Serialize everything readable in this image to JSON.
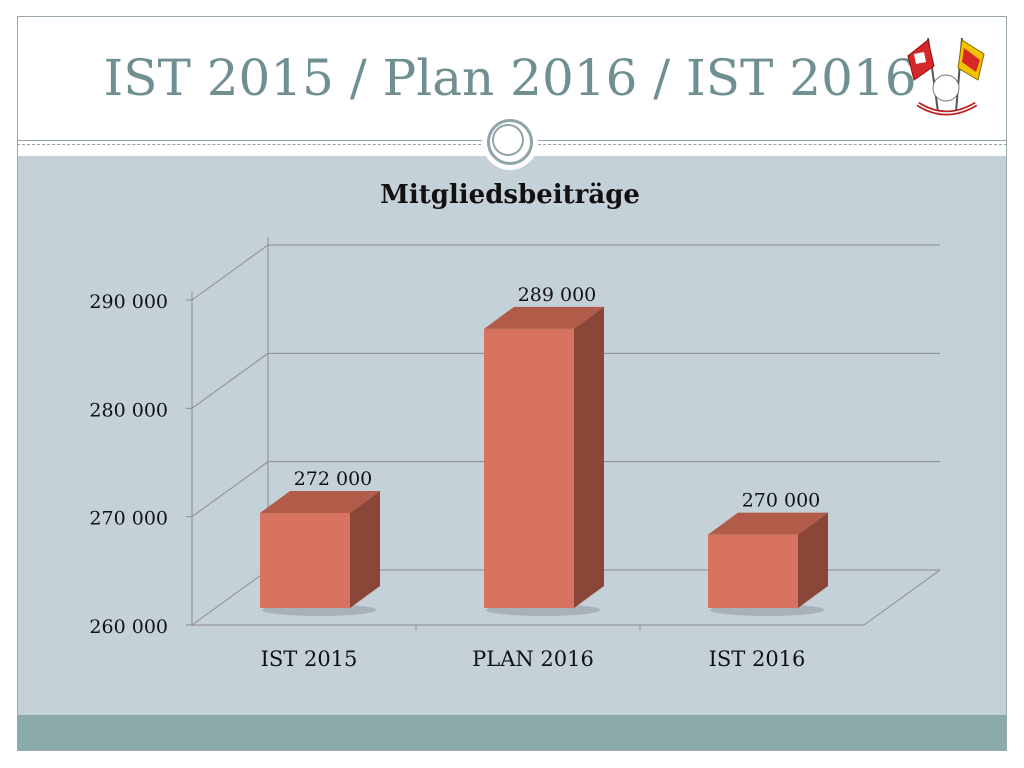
{
  "slide": {
    "title": "IST 2015 / Plan 2016 / IST 2016"
  },
  "colors": {
    "title": "#6f8f91",
    "content_background": "#c5d1d8",
    "footer_bar": "#8aaba9",
    "bar_front": "#d7735f",
    "bar_side": "#8a4636",
    "bar_top": "#b05c48"
  },
  "logo": {
    "icon": "club-flags-logo-icon"
  },
  "chart_data": {
    "type": "bar",
    "title": "Mitgliedsbeiträge",
    "style": "3d-column",
    "categories": [
      "IST 2015",
      "PLAN 2016",
      "IST 2016"
    ],
    "values": [
      272000,
      289000,
      270000
    ],
    "value_labels": [
      "272 000",
      "289 000",
      "270 000"
    ],
    "ylim": [
      260000,
      290000
    ],
    "yticks": [
      260000,
      270000,
      280000,
      290000
    ],
    "ytick_labels": [
      "260 000",
      "270 000",
      "280 000",
      "290 000"
    ],
    "xlabel": "",
    "ylabel": "",
    "grid": true,
    "legend": "none"
  }
}
